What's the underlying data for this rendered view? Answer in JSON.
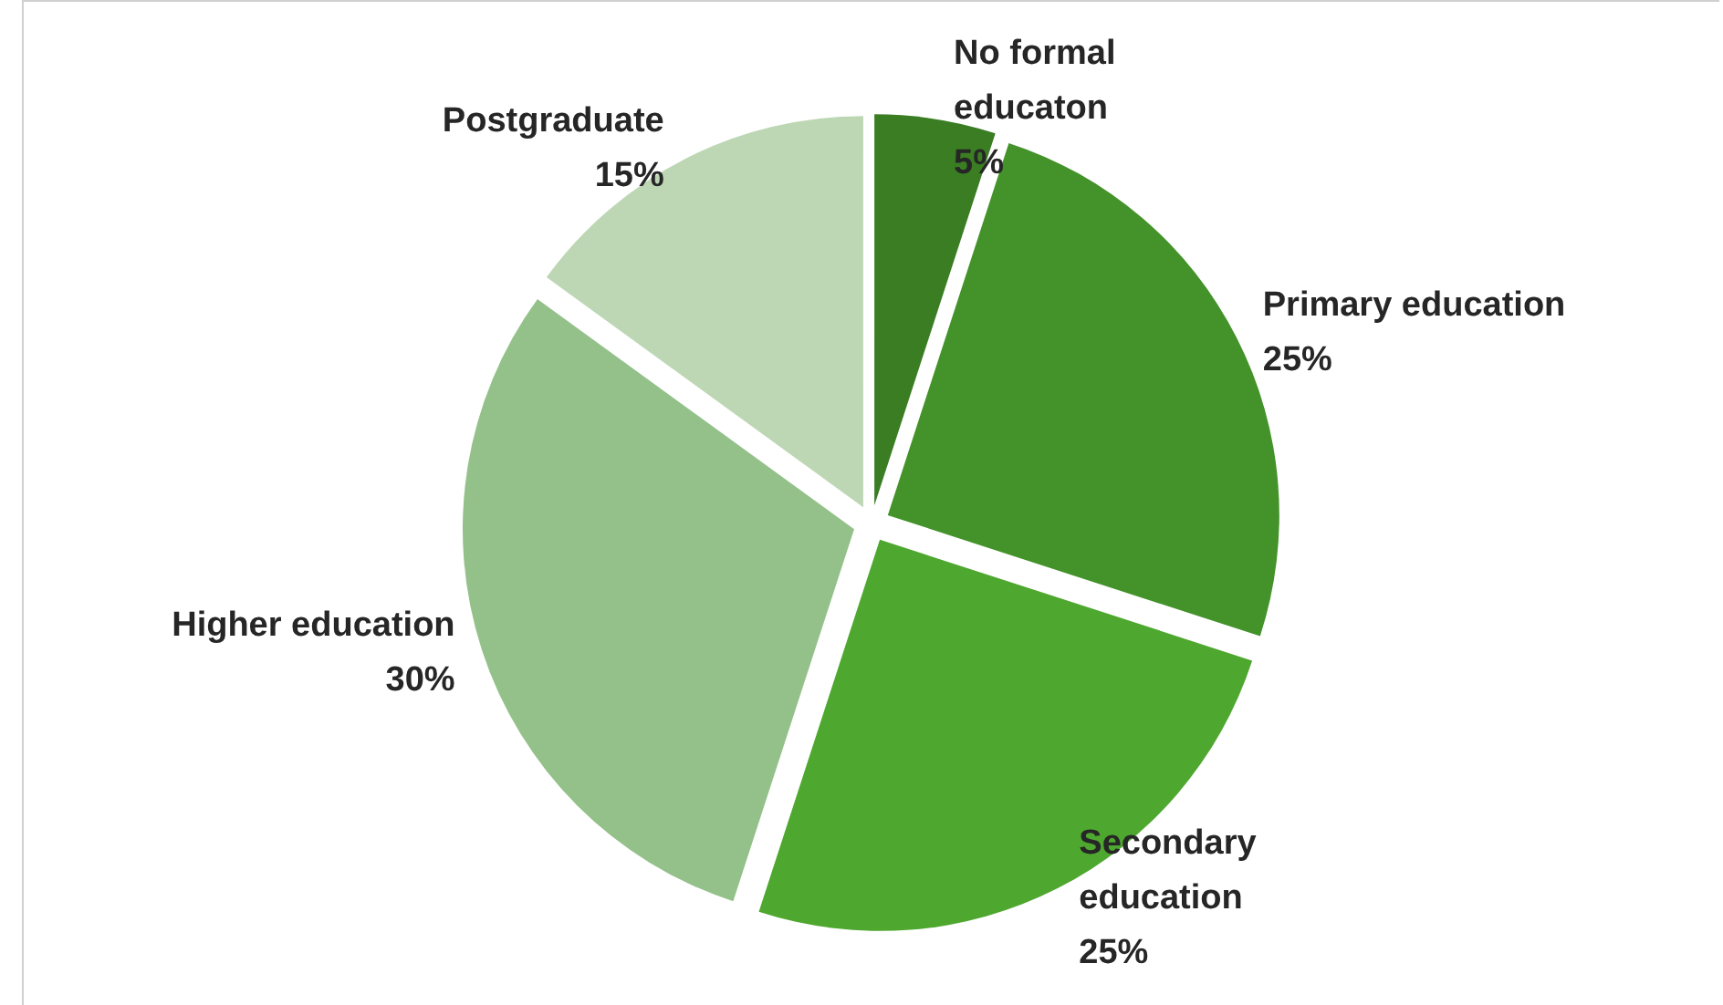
{
  "chart_data": {
    "type": "pie",
    "categories": [
      "No formal educaton",
      "Primary education",
      "Secondary education",
      "Higher education",
      "Postgraduate"
    ],
    "values": [
      5,
      25,
      25,
      30,
      15
    ],
    "colors": [
      "#3a7d22",
      "#43922a",
      "#4ea72e",
      "#94c18a",
      "#bdd7b5"
    ],
    "value_labels": [
      "5%",
      "25%",
      "25%",
      "30%",
      "15%"
    ],
    "legend": false
  }
}
